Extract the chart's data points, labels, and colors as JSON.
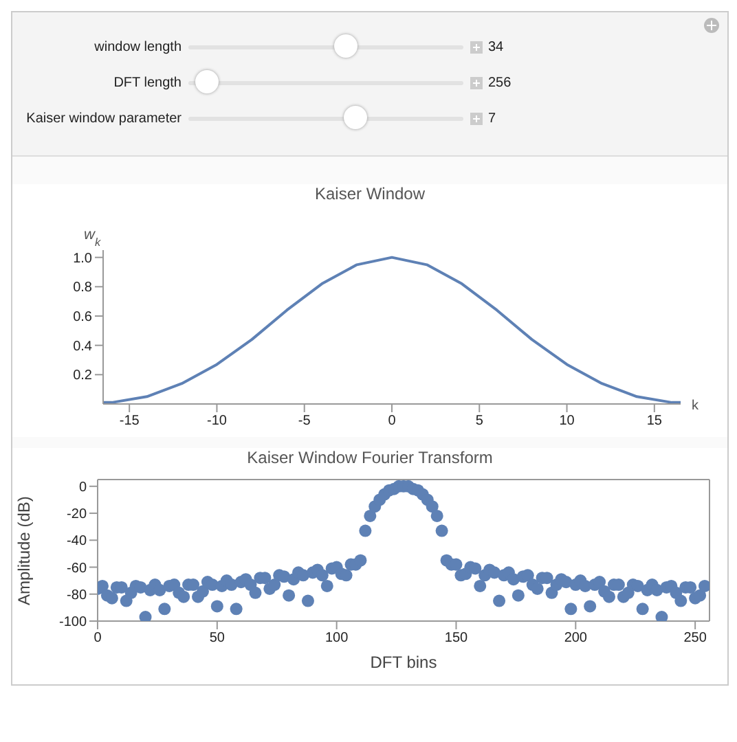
{
  "chart_data": [
    {
      "type": "other",
      "annotations": [
        "window length",
        "34",
        "DFT length",
        "256",
        "Kaiser window parameter",
        "7"
      ]
    },
    {
      "type": "line",
      "title": "Kaiser Window",
      "xlabel": "k",
      "ylabel": "w$_{k}$",
      "x": [
        -16.5,
        -16,
        -14,
        -12,
        -10,
        -8,
        -6,
        -4,
        -2,
        0,
        2,
        4,
        6,
        8,
        10,
        12,
        14,
        16,
        16.5
      ],
      "series": [
        {
          "color": "#5e81b5",
          "values": [
            0.01,
            0.01,
            0.05,
            0.14,
            0.27,
            0.44,
            0.64,
            0.82,
            0.95,
            1.0,
            0.95,
            0.82,
            0.64,
            0.44,
            0.27,
            0.14,
            0.05,
            0.01,
            0.01
          ]
        }
      ],
      "xlim": [
        -16.5,
        16.5
      ],
      "xticks": [
        -15,
        -10,
        -5,
        0,
        5,
        10,
        15
      ],
      "ylim": [
        0,
        1.05
      ],
      "yticks": [
        0.2,
        0.4,
        0.6,
        0.8,
        {
          "value": 1,
          "label": "1.0"
        }
      ],
      "marker": "none",
      "line_style": "solid",
      "grid": false,
      "legend": false
    },
    {
      "type": "scatter",
      "title": "Kaiser Window Fourier Transform",
      "xlabel": "DFT bins",
      "ylabel": "Amplitude (dB)",
      "x": [
        0,
        2,
        4,
        6,
        8,
        10,
        12,
        14,
        16,
        18,
        20,
        22,
        24,
        26,
        28,
        30,
        32,
        34,
        36,
        38,
        40,
        42,
        44,
        46,
        48,
        50,
        52,
        54,
        56,
        58,
        60,
        62,
        64,
        66,
        68,
        70,
        72,
        74,
        76,
        78,
        80,
        82,
        84,
        86,
        88,
        90,
        92,
        94,
        96,
        98,
        100,
        102,
        104,
        106,
        108,
        110,
        112,
        114,
        116,
        118,
        120,
        122,
        124,
        126,
        128,
        130,
        132,
        134,
        136,
        138,
        140,
        142,
        144,
        146,
        148,
        150,
        152,
        154,
        156,
        158,
        160,
        162,
        164,
        166,
        168,
        170,
        172,
        174,
        176,
        178,
        180,
        182,
        184,
        186,
        188,
        190,
        192,
        194,
        196,
        198,
        200,
        202,
        204,
        206,
        208,
        210,
        212,
        214,
        216,
        218,
        220,
        222,
        224,
        226,
        228,
        230,
        232,
        234,
        236,
        238,
        240,
        242,
        244,
        246,
        248,
        250,
        252,
        254
      ],
      "series": [
        {
          "color": "#5e81b5",
          "values": [
            -76,
            -74,
            -81,
            -83,
            -75,
            -75,
            -85,
            -79,
            -74,
            -75,
            -97,
            -77,
            -73,
            -77,
            -91,
            -74,
            -73,
            -79,
            -82,
            -73,
            -73,
            -82,
            -78,
            -71,
            -73,
            -89,
            -74,
            -70,
            -73,
            -91,
            -71,
            -69,
            -73,
            -79,
            -68,
            -68,
            -76,
            -73,
            -66,
            -67,
            -81,
            -69,
            -64,
            -66,
            -85,
            -64,
            -62,
            -66,
            -74,
            -61,
            -60,
            -65,
            -66,
            -58,
            -58,
            -55,
            -33,
            -22,
            -15,
            -10,
            -6,
            -3,
            -2,
            0,
            0,
            0,
            -2,
            -3,
            -6,
            -10,
            -15,
            -22,
            -33,
            -55,
            -58,
            -58,
            -66,
            -65,
            -60,
            -61,
            -74,
            -66,
            -62,
            -64,
            -85,
            -66,
            -64,
            -69,
            -81,
            -67,
            -66,
            -73,
            -76,
            -68,
            -68,
            -79,
            -73,
            -69,
            -71,
            -91,
            -73,
            -70,
            -74,
            -89,
            -73,
            -71,
            -78,
            -82,
            -73,
            -73,
            -82,
            -79,
            -73,
            -74,
            -91,
            -77,
            -73,
            -77,
            -97,
            -75,
            -74,
            -79,
            -85,
            -75,
            -75,
            -83,
            -81,
            -74
          ]
        }
      ],
      "xlim": [
        0,
        256
      ],
      "xticks": [
        0,
        50,
        100,
        150,
        200,
        250
      ],
      "ylim": [
        -100,
        5
      ],
      "yticks": [
        -100,
        -80,
        -60,
        -40,
        -20,
        0
      ],
      "marker": "circle",
      "grid": false,
      "legend": false
    }
  ]
}
